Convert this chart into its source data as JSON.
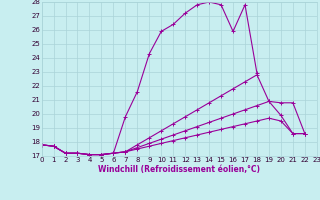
{
  "xlabel": "Windchill (Refroidissement éolien,°C)",
  "bg_color": "#c8eef0",
  "grid_color": "#aad4d8",
  "line_color": "#990099",
  "xlim": [
    0,
    23
  ],
  "ylim": [
    17,
    28
  ],
  "xticks": [
    0,
    1,
    2,
    3,
    4,
    5,
    6,
    7,
    8,
    9,
    10,
    11,
    12,
    13,
    14,
    15,
    16,
    17,
    18,
    19,
    20,
    21,
    22,
    23
  ],
  "yticks": [
    17,
    18,
    19,
    20,
    21,
    22,
    23,
    24,
    25,
    26,
    27,
    28
  ],
  "line1_x": [
    0,
    1,
    2,
    3,
    4,
    5,
    6,
    7,
    8,
    9,
    10,
    11,
    12,
    13,
    14,
    15,
    16,
    17,
    18
  ],
  "line1_y": [
    17.8,
    17.7,
    17.2,
    17.2,
    17.1,
    17.1,
    17.2,
    19.8,
    21.6,
    24.3,
    25.9,
    26.4,
    27.2,
    27.8,
    28.0,
    27.8,
    25.9,
    27.8,
    22.9
  ],
  "line2_x": [
    0,
    1,
    2,
    3,
    4,
    5,
    6,
    7,
    8,
    9,
    10,
    11,
    12,
    13,
    14,
    15,
    16,
    17,
    18,
    19,
    20,
    21,
    22
  ],
  "line2_y": [
    17.8,
    17.7,
    17.2,
    17.2,
    17.1,
    17.1,
    17.2,
    17.3,
    17.8,
    18.3,
    18.8,
    19.3,
    19.8,
    20.3,
    20.8,
    21.3,
    21.8,
    22.3,
    22.8,
    20.9,
    20.8,
    20.8,
    18.6
  ],
  "line3_x": [
    0,
    1,
    2,
    3,
    4,
    5,
    6,
    7,
    8,
    9,
    10,
    11,
    12,
    13,
    14,
    15,
    16,
    17,
    18,
    19,
    20,
    21,
    22
  ],
  "line3_y": [
    17.8,
    17.7,
    17.2,
    17.2,
    17.1,
    17.1,
    17.2,
    17.3,
    17.6,
    17.9,
    18.2,
    18.5,
    18.8,
    19.1,
    19.4,
    19.7,
    20.0,
    20.3,
    20.6,
    20.9,
    19.9,
    18.6,
    18.6
  ],
  "line4_x": [
    0,
    1,
    2,
    3,
    4,
    5,
    6,
    7,
    8,
    9,
    10,
    11,
    12,
    13,
    14,
    15,
    16,
    17,
    18,
    19,
    20,
    21,
    22
  ],
  "line4_y": [
    17.8,
    17.7,
    17.2,
    17.2,
    17.1,
    17.1,
    17.2,
    17.3,
    17.5,
    17.7,
    17.9,
    18.1,
    18.3,
    18.5,
    18.7,
    18.9,
    19.1,
    19.3,
    19.5,
    19.7,
    19.5,
    18.6,
    18.6
  ],
  "linewidth": 0.8,
  "marker_size": 3,
  "tick_fontsize": 5,
  "xlabel_fontsize": 5.5
}
